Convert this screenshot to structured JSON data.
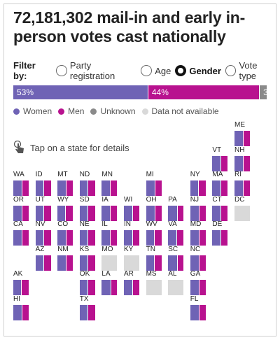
{
  "title": "72,181,302 mail-in and early in-person votes cast nationally",
  "filter": {
    "label": "Filter by:",
    "options": [
      {
        "label": "Party registration",
        "checked": false
      },
      {
        "label": "Age",
        "checked": false
      },
      {
        "label": "Gender",
        "checked": true
      },
      {
        "label": "Vote type",
        "checked": false
      }
    ]
  },
  "national_bar": [
    {
      "label": "53%",
      "share": 53,
      "color": "#6f63b5"
    },
    {
      "label": "44%",
      "share": 44,
      "color": "#b8128f"
    },
    {
      "label": "3",
      "share": 3,
      "color": "#8a8a8a"
    }
  ],
  "legend": [
    {
      "label": "Women",
      "color": "#6f63b5"
    },
    {
      "label": "Men",
      "color": "#b8128f"
    },
    {
      "label": "Unknown",
      "color": "#8a8a8a"
    },
    {
      "label": "Data not available",
      "color": "#d9d9d9"
    }
  ],
  "tap_hint": "Tap on a state for details",
  "states": [
    {
      "abbr": "ME",
      "available": true,
      "women": 55
    },
    {
      "abbr": "VT",
      "available": true,
      "women": 55
    },
    {
      "abbr": "NH",
      "available": true,
      "women": 55
    },
    {
      "abbr": "WA",
      "available": true,
      "women": 53
    },
    {
      "abbr": "ID",
      "available": true,
      "women": 52
    },
    {
      "abbr": "MT",
      "available": true,
      "women": 52
    },
    {
      "abbr": "ND",
      "available": true,
      "women": 52
    },
    {
      "abbr": "MN",
      "available": true,
      "women": 54
    },
    {
      "abbr": "MI",
      "available": true,
      "women": 55
    },
    {
      "abbr": "NY",
      "available": true,
      "women": 53
    },
    {
      "abbr": "MA",
      "available": true,
      "women": 55
    },
    {
      "abbr": "RI",
      "available": true,
      "women": 53
    },
    {
      "abbr": "OR",
      "available": true,
      "women": 53
    },
    {
      "abbr": "UT",
      "available": true,
      "women": 51
    },
    {
      "abbr": "WY",
      "available": true,
      "women": 51
    },
    {
      "abbr": "SD",
      "available": true,
      "women": 52
    },
    {
      "abbr": "IA",
      "available": true,
      "women": 54
    },
    {
      "abbr": "WI",
      "available": true,
      "women": 54
    },
    {
      "abbr": "OH",
      "available": true,
      "women": 55
    },
    {
      "abbr": "PA",
      "available": true,
      "women": 57
    },
    {
      "abbr": "NJ",
      "available": true,
      "women": 54
    },
    {
      "abbr": "CT",
      "available": true,
      "women": 54
    },
    {
      "abbr": "DC",
      "available": false,
      "women": 0
    },
    {
      "abbr": "CA",
      "available": true,
      "women": 53
    },
    {
      "abbr": "NV",
      "available": true,
      "women": 53
    },
    {
      "abbr": "CO",
      "available": true,
      "women": 52
    },
    {
      "abbr": "NE",
      "available": true,
      "women": 53
    },
    {
      "abbr": "IL",
      "available": true,
      "women": 53
    },
    {
      "abbr": "IN",
      "available": true,
      "women": 54
    },
    {
      "abbr": "WV",
      "available": true,
      "women": 52
    },
    {
      "abbr": "VA",
      "available": true,
      "women": 54
    },
    {
      "abbr": "MD",
      "available": true,
      "women": 56
    },
    {
      "abbr": "DE",
      "available": true,
      "women": 55
    },
    {
      "abbr": "AZ",
      "available": true,
      "women": 53
    },
    {
      "abbr": "NM",
      "available": true,
      "women": 54
    },
    {
      "abbr": "KS",
      "available": true,
      "women": 53
    },
    {
      "abbr": "MO",
      "available": false,
      "women": 0
    },
    {
      "abbr": "KY",
      "available": false,
      "women": 0
    },
    {
      "abbr": "TN",
      "available": true,
      "women": 54
    },
    {
      "abbr": "SC",
      "available": true,
      "women": 56
    },
    {
      "abbr": "NC",
      "available": true,
      "women": 55
    },
    {
      "abbr": "AK",
      "available": true,
      "women": 52
    },
    {
      "abbr": "OK",
      "available": true,
      "women": 53
    },
    {
      "abbr": "LA",
      "available": true,
      "women": 56
    },
    {
      "abbr": "AR",
      "available": true,
      "women": 55
    },
    {
      "abbr": "MS",
      "available": false,
      "women": 0
    },
    {
      "abbr": "AL",
      "available": false,
      "women": 0
    },
    {
      "abbr": "GA",
      "available": true,
      "women": 55
    },
    {
      "abbr": "HI",
      "available": true,
      "women": 55
    },
    {
      "abbr": "TX",
      "available": true,
      "women": 53
    },
    {
      "abbr": "FL",
      "available": true,
      "women": 54
    }
  ]
}
